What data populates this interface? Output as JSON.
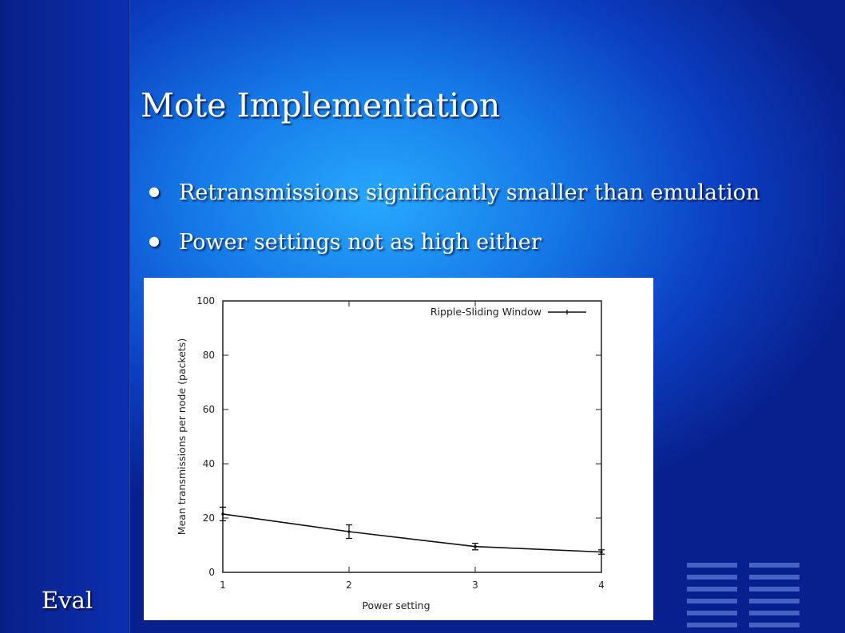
{
  "slide": {
    "title": "Mote Implementation",
    "bullets": [
      "Retransmissions significantly smaller than emulation",
      "Power settings not as high either"
    ],
    "footer_label": "Eval"
  },
  "colors": {
    "background": "#1577e6",
    "sidebar": "#0a2a9a",
    "text": "#ffffff"
  },
  "chart_data": {
    "type": "line",
    "xlabel": "Power setting",
    "ylabel": "Mean transmissions per node (packets)",
    "x": [
      1,
      2,
      3,
      4
    ],
    "xticks": [
      "1",
      "2",
      "3",
      "4"
    ],
    "yticks": [
      "0",
      "20",
      "40",
      "60",
      "80",
      "100"
    ],
    "xlim": [
      1,
      4
    ],
    "ylim": [
      0,
      100
    ],
    "grid": false,
    "legend_position": "top-right",
    "series": [
      {
        "name": "Ripple-Sliding Window",
        "values": [
          21.5,
          15,
          9.5,
          7.5
        ],
        "errors": [
          2.5,
          2.5,
          1.2,
          0.8
        ]
      }
    ]
  }
}
